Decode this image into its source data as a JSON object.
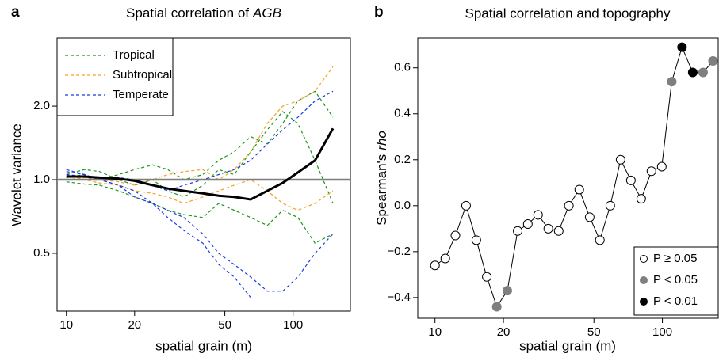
{
  "chart_data": [
    {
      "type": "line",
      "panel": "a",
      "title": "Spatial correlation of",
      "title_italic": "AGB",
      "xlabel": "spatial grain (m)",
      "ylabel": "Wavelet variance",
      "xlog": true,
      "ylog": true,
      "xlim": [
        9.1,
        179
      ],
      "ylim": [
        0.29,
        3.8
      ],
      "xticks": [
        10,
        20,
        50,
        100
      ],
      "yticks": [
        0.5,
        {
          "value": 1,
          "label": "1.0"
        },
        {
          "value": 2,
          "label": "2.0"
        }
      ],
      "hline": {
        "value": 1,
        "color": "#7f7f7f"
      },
      "legend": "upper left",
      "x": [
        10,
        12,
        14,
        17,
        20,
        24,
        28,
        33,
        40,
        47,
        55,
        65,
        77,
        90,
        105,
        125,
        150
      ],
      "mean": {
        "color": "#000000",
        "values": [
          1.03,
          1.03,
          1.02,
          1.01,
          0.99,
          0.95,
          0.92,
          0.9,
          0.88,
          0.86,
          0.85,
          0.83,
          0.9,
          0.97,
          1.07,
          1.2,
          1.62
        ]
      },
      "groups": [
        {
          "name": "Tropical",
          "color": "#1a961a",
          "lines": [
            [
              1.05,
              1.1,
              1.08,
              1.0,
              0.95,
              1.0,
              0.9,
              0.85,
              0.95,
              1.1,
              1.05,
              1.3,
              1.6,
              1.9,
              1.7,
              1.2,
              0.8
            ],
            [
              0.98,
              0.96,
              0.95,
              0.9,
              0.85,
              0.8,
              0.75,
              0.72,
              0.7,
              0.8,
              0.75,
              0.7,
              0.65,
              0.75,
              0.7,
              0.55,
              0.6
            ],
            [
              1.02,
              1.05,
              1.0,
              1.05,
              1.1,
              1.15,
              1.1,
              1.0,
              1.05,
              1.2,
              1.3,
              1.5,
              1.4,
              1.7,
              2.1,
              2.3,
              1.8
            ]
          ]
        },
        {
          "name": "Subtropical",
          "color": "#f0a320",
          "lines": [
            [
              1.0,
              1.02,
              1.0,
              0.98,
              0.95,
              1.0,
              1.05,
              1.08,
              1.1,
              1.0,
              1.1,
              1.3,
              1.7,
              2.0,
              2.1,
              2.3,
              2.9
            ],
            [
              1.05,
              1.0,
              0.97,
              0.95,
              0.9,
              0.88,
              0.85,
              0.8,
              0.85,
              0.9,
              0.95,
              1.0,
              0.9,
              0.8,
              0.75,
              0.8,
              0.9
            ]
          ]
        },
        {
          "name": "Temperate",
          "color": "#1c3be0",
          "lines": [
            [
              1.1,
              1.05,
              1.0,
              0.95,
              0.85,
              0.8,
              0.75,
              0.7,
              0.6,
              0.5,
              0.45,
              0.4,
              0.35,
              0.35,
              0.4,
              0.5,
              0.6
            ],
            [
              1.08,
              1.05,
              1.0,
              0.95,
              0.9,
              0.8,
              0.7,
              0.62,
              0.55,
              0.45,
              0.4,
              0.33,
              null,
              null,
              null,
              null,
              null
            ],
            [
              1.05,
              1.03,
              1.0,
              1.02,
              1.0,
              0.95,
              0.9,
              0.95,
              1.0,
              1.05,
              1.1,
              1.2,
              1.4,
              1.6,
              1.8,
              2.1,
              2.3
            ]
          ]
        }
      ]
    },
    {
      "type": "scatter-line",
      "panel": "b",
      "title": "Spatial correlation and topography",
      "xlabel": "spatial grain (m)",
      "ylabel": "Spearman's",
      "ylabel_italic": "rho",
      "xlog": true,
      "xlim": [
        8.4,
        176
      ],
      "ylim": [
        -0.49,
        0.73
      ],
      "xticks": [
        10,
        20,
        50,
        100
      ],
      "yticks": [
        {
          "value": -0.4,
          "label": "−0.4"
        },
        {
          "value": -0.2,
          "label": "−0.2"
        },
        {
          "value": 0,
          "label": "0.0"
        },
        0.2,
        0.4,
        0.6
      ],
      "legend": "lower right",
      "x": [
        10,
        11.1,
        12.3,
        13.7,
        15.2,
        16.9,
        18.7,
        20.8,
        23.1,
        25.6,
        28.4,
        31.5,
        35,
        38.8,
        43.1,
        47.9,
        53.1,
        59,
        65.5,
        72.7,
        80.7,
        89.5,
        99.4,
        110,
        122,
        136,
        151,
        167
      ],
      "values": [
        -0.26,
        -0.23,
        -0.13,
        0.0,
        -0.15,
        -0.31,
        -0.44,
        -0.37,
        -0.11,
        -0.08,
        -0.04,
        -0.1,
        -0.11,
        0.0,
        0.07,
        -0.05,
        -0.15,
        0.0,
        0.2,
        0.11,
        0.03,
        0.15,
        0.17,
        0.54,
        0.69,
        0.58,
        0.58,
        0.63
      ],
      "significance": [
        0,
        0,
        0,
        0,
        0,
        0,
        1,
        1,
        0,
        0,
        0,
        0,
        0,
        0,
        0,
        0,
        0,
        0,
        0,
        0,
        0,
        0,
        0,
        1,
        2,
        2,
        1,
        1
      ],
      "levels": [
        {
          "label": "P ≥ 0.05",
          "color": "#ffffff"
        },
        {
          "label": "P < 0.05",
          "color": "#7f7f7f"
        },
        {
          "label": "P < 0.01",
          "color": "#000000"
        }
      ]
    }
  ]
}
